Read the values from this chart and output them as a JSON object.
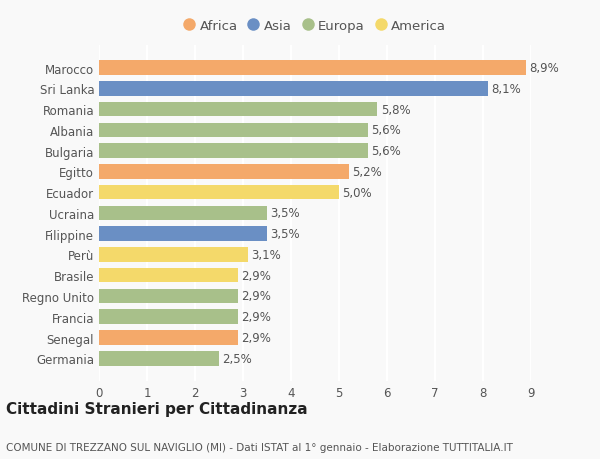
{
  "countries": [
    "Germania",
    "Senegal",
    "Francia",
    "Regno Unito",
    "Brasile",
    "Perù",
    "Filippine",
    "Ucraina",
    "Ecuador",
    "Egitto",
    "Bulgaria",
    "Albania",
    "Romania",
    "Sri Lanka",
    "Marocco"
  ],
  "values": [
    2.5,
    2.9,
    2.9,
    2.9,
    2.9,
    3.1,
    3.5,
    3.5,
    5.0,
    5.2,
    5.6,
    5.6,
    5.8,
    8.1,
    8.9
  ],
  "continents": [
    "Europa",
    "Africa",
    "Europa",
    "Europa",
    "America",
    "America",
    "Asia",
    "Europa",
    "America",
    "Africa",
    "Europa",
    "Europa",
    "Europa",
    "Asia",
    "Africa"
  ],
  "labels": [
    "2,5%",
    "2,9%",
    "2,9%",
    "2,9%",
    "2,9%",
    "3,1%",
    "3,5%",
    "3,5%",
    "5,0%",
    "5,2%",
    "5,6%",
    "5,6%",
    "5,8%",
    "8,1%",
    "8,9%"
  ],
  "continent_colors": {
    "Africa": "#F4A96A",
    "Asia": "#6A8FC4",
    "Europa": "#A8C08A",
    "America": "#F4D96A"
  },
  "legend_order": [
    "Africa",
    "Asia",
    "Europa",
    "America"
  ],
  "title": "Cittadini Stranieri per Cittadinanza",
  "subtitle": "COMUNE DI TREZZANO SUL NAVIGLIO (MI) - Dati ISTAT al 1° gennaio - Elaborazione TUTTITALIA.IT",
  "xlim": [
    0,
    9
  ],
  "xticks": [
    0,
    1,
    2,
    3,
    4,
    5,
    6,
    7,
    8,
    9
  ],
  "background_color": "#f9f9f9",
  "grid_color": "#ffffff",
  "bar_height": 0.7,
  "label_fontsize": 8.5,
  "title_fontsize": 11,
  "subtitle_fontsize": 7.5,
  "tick_fontsize": 8.5,
  "legend_fontsize": 9.5
}
